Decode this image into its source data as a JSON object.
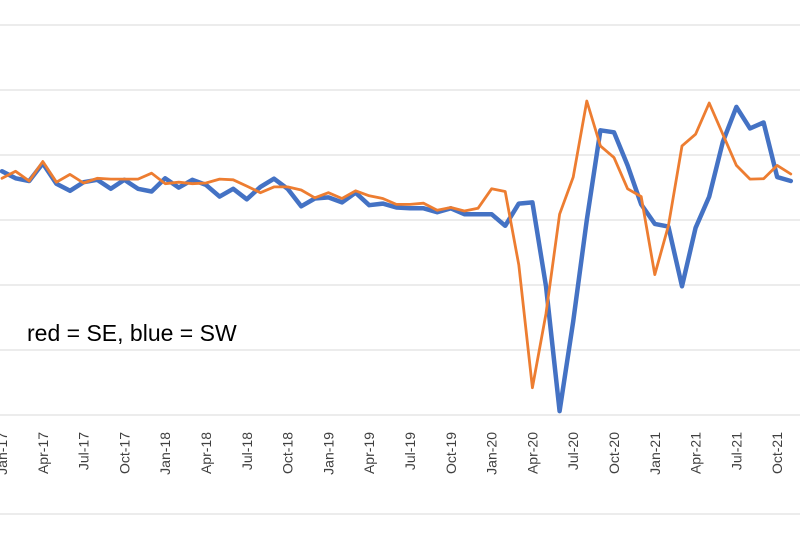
{
  "chart_data": {
    "type": "line",
    "title": "",
    "xlabel": "",
    "ylabel": "",
    "annotation": "red = SE, blue = SW",
    "grid": true,
    "legend": "none",
    "y_gridlines": 7,
    "categories": [
      "Jan-17",
      "Feb-17",
      "Mar-17",
      "Apr-17",
      "May-17",
      "Jun-17",
      "Jul-17",
      "Aug-17",
      "Sep-17",
      "Oct-17",
      "Nov-17",
      "Dec-17",
      "Jan-18",
      "Feb-18",
      "Mar-18",
      "Apr-18",
      "May-18",
      "Jun-18",
      "Jul-18",
      "Aug-18",
      "Sep-18",
      "Oct-18",
      "Nov-18",
      "Dec-18",
      "Jan-19",
      "Feb-19",
      "Mar-19",
      "Apr-19",
      "May-19",
      "Jun-19",
      "Jul-19",
      "Aug-19",
      "Sep-19",
      "Oct-19",
      "Nov-19",
      "Dec-19",
      "Jan-20",
      "Feb-20",
      "Mar-20",
      "Apr-20",
      "May-20",
      "Jun-20",
      "Jul-20",
      "Aug-20",
      "Sep-20",
      "Oct-20",
      "Nov-20",
      "Dec-20",
      "Jan-21",
      "Feb-21",
      "Mar-21",
      "Apr-21",
      "May-21",
      "Jun-21",
      "Jul-21",
      "Aug-21",
      "Sep-21",
      "Oct-21",
      "Nov-21"
    ],
    "tick_labels": [
      "Jan-17",
      "Apr-17",
      "Jul-17",
      "Oct-17",
      "Jan-18",
      "Apr-18",
      "Jul-18",
      "Oct-18",
      "Jan-19",
      "Apr-19",
      "Jul-19",
      "Oct-19",
      "Jan-20",
      "Apr-20",
      "Jul-20",
      "Oct-20",
      "Jan-21",
      "Apr-21",
      "Jul-21",
      "Oct-21"
    ],
    "ylim": [
      0,
      100
    ],
    "series": [
      {
        "color": "#4472c4",
        "values": [
          62.5,
          60.7,
          60,
          64.5,
          59.3,
          57.5,
          59.7,
          60.3,
          58,
          60.3,
          58,
          57.3,
          60.7,
          58.3,
          60.3,
          59,
          56,
          58,
          55.3,
          58.5,
          60.6,
          58,
          53.5,
          55.5,
          55.8,
          54.5,
          57,
          53.8,
          54.2,
          53.2,
          53,
          53,
          52,
          53,
          51.5,
          51.5,
          51.5,
          48.5,
          54.2,
          54.5,
          33,
          1,
          24,
          50,
          73,
          72.5,
          64,
          54,
          49,
          48.3,
          33,
          48,
          56,
          70,
          79,
          73.5,
          75,
          61,
          60
        ]
      },
      {
        "color": "#ed7d31",
        "values": [
          60.7,
          62.5,
          60,
          65,
          59.7,
          61.7,
          59.5,
          60.7,
          60.5,
          60.5,
          60.5,
          62,
          59.3,
          59.7,
          59.3,
          59.5,
          60.5,
          60.3,
          58.7,
          57,
          58.5,
          58.5,
          57.7,
          55.7,
          57,
          55.5,
          57.5,
          56.2,
          55.5,
          54,
          54,
          54.3,
          52.5,
          53.2,
          52.3,
          53,
          58,
          57.3,
          38.5,
          7,
          26,
          51.5,
          61,
          80.5,
          69,
          66,
          58,
          56,
          36,
          48.5,
          69,
          72,
          80,
          72,
          64,
          60.5,
          60.6,
          64,
          61.8
        ]
      }
    ]
  }
}
